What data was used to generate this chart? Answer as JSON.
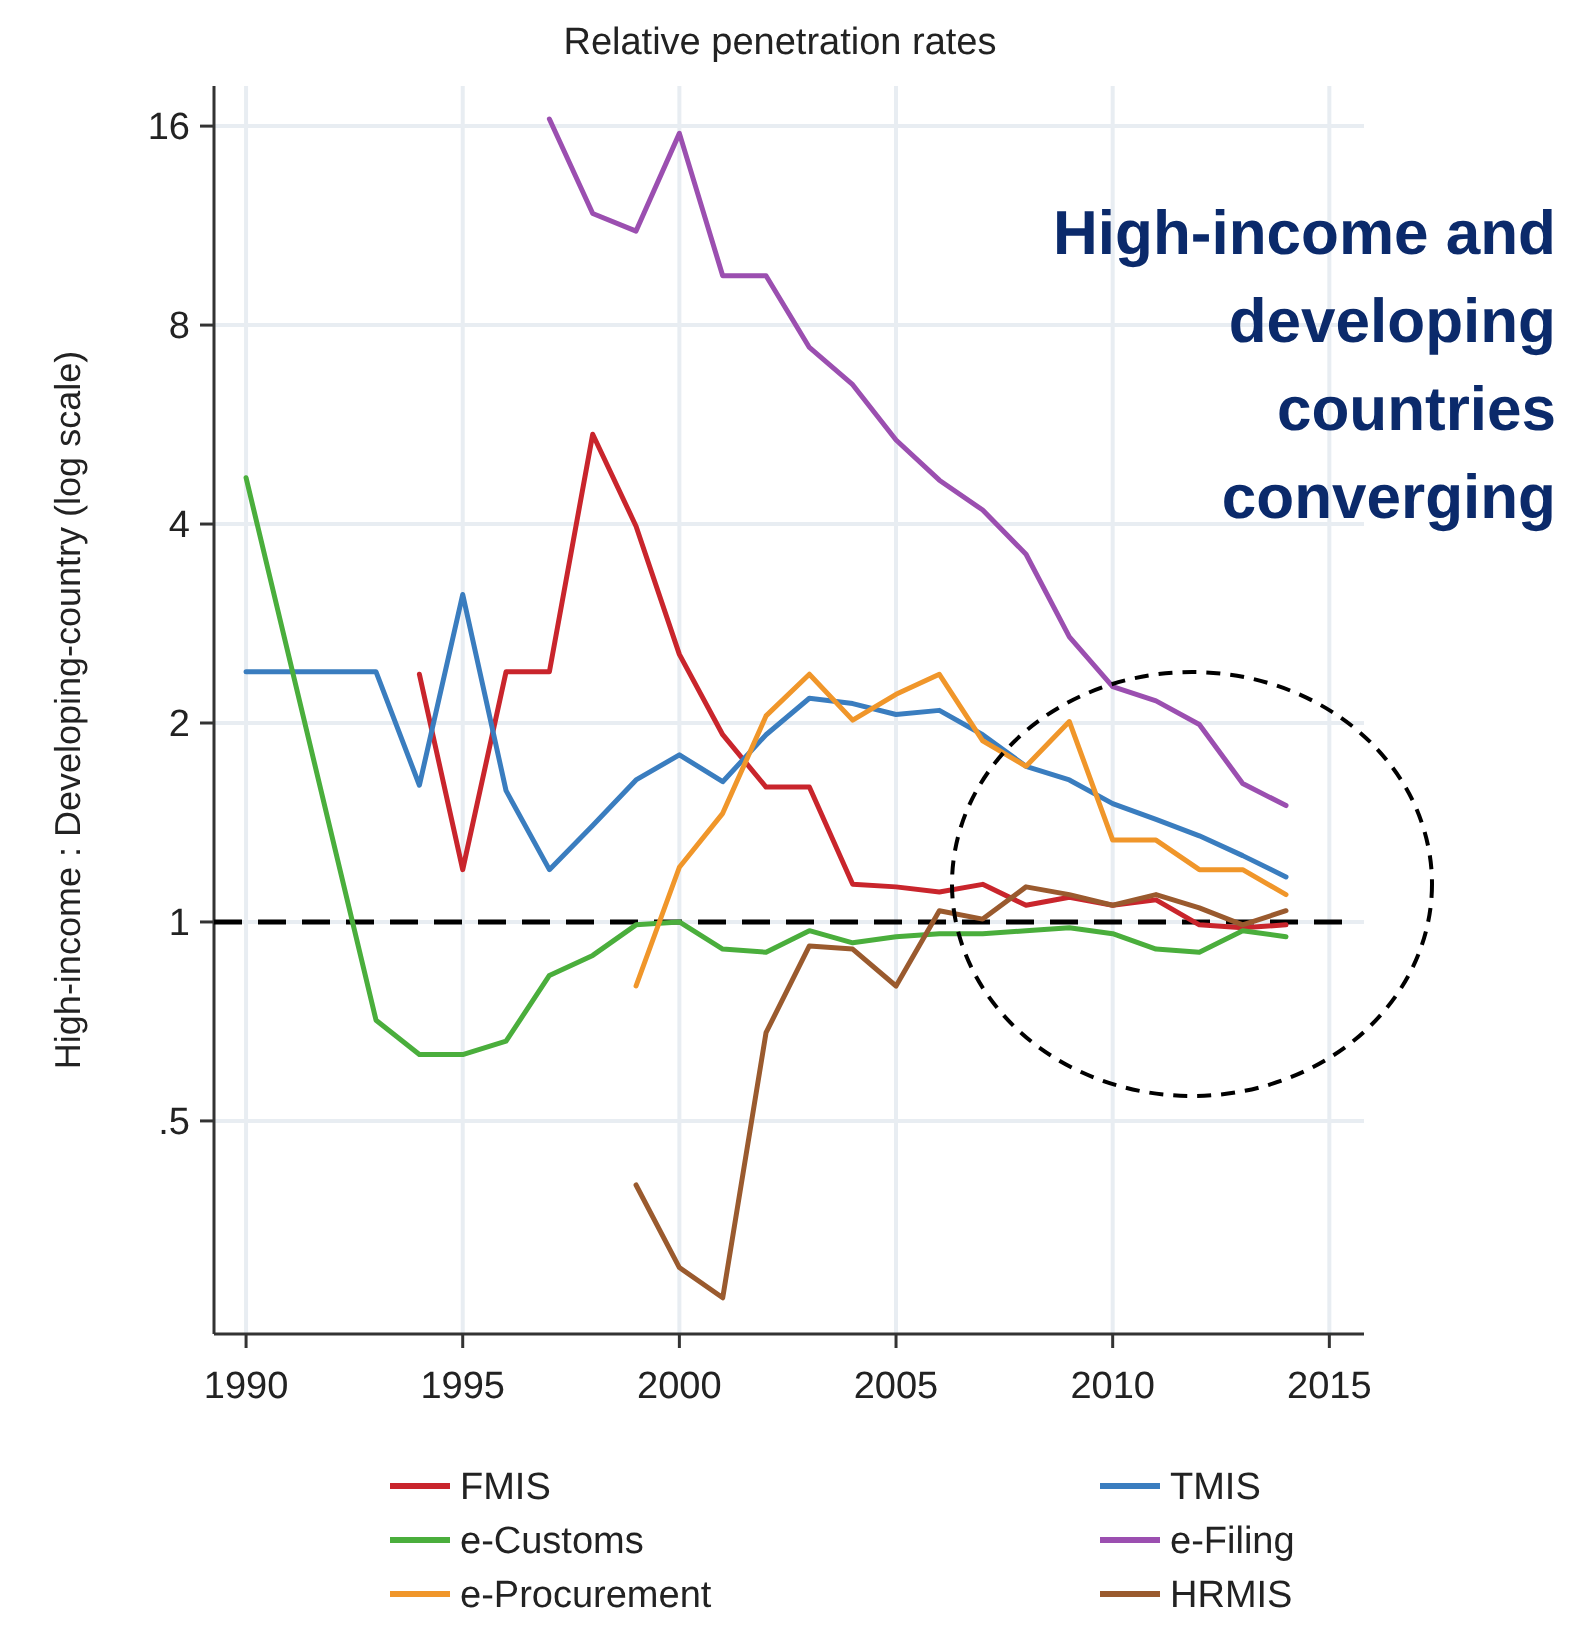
{
  "chart_data": {
    "type": "line",
    "title": "Relative penetration rates",
    "ylabel": "High-income : Developing-country (log scale)",
    "xlim": [
      1989.26,
      2015.8
    ],
    "xticks": [
      1990,
      1995,
      2000,
      2005,
      2010,
      2015
    ],
    "ylim": [
      0.238,
      18.4
    ],
    "yticks": [
      16,
      8,
      4,
      2,
      1,
      {
        "value": 0.5,
        "label": ".5"
      }
    ],
    "log": "y",
    "grid": true,
    "legend": "bottom",
    "marker": "none",
    "line_style": "solid",
    "ref_lines": [
      {
        "axis": "y",
        "value": 1,
        "label": null,
        "color": "#000000",
        "line_style": "dashed"
      }
    ],
    "annotations": [
      "High-income and developing countries converging"
    ],
    "series": [
      {
        "name": "FMIS",
        "color": "#c9252c",
        "x": [
          1994,
          1995,
          1996,
          1997,
          1998,
          1999,
          2000,
          2001,
          2002,
          2003,
          2004,
          2005,
          2006,
          2007,
          2008,
          2009,
          2010,
          2011,
          2012,
          2013,
          2014
        ],
        "values": [
          2.37,
          1.2,
          2.39,
          2.39,
          5.47,
          3.97,
          2.54,
          1.92,
          1.6,
          1.6,
          1.14,
          1.13,
          1.11,
          1.14,
          1.06,
          1.09,
          1.06,
          1.08,
          0.99,
          0.98,
          0.99
        ]
      },
      {
        "name": "TMIS",
        "color": "#3a7dbf",
        "x": [
          1990,
          1993,
          1994,
          1995,
          1996,
          1997,
          1998,
          1999,
          2000,
          2001,
          2002,
          2003,
          2004,
          2005,
          2006,
          2007,
          2008,
          2009,
          2010,
          2011,
          2012,
          2013,
          2014
        ],
        "values": [
          2.39,
          2.39,
          1.61,
          3.13,
          1.58,
          1.2,
          1.4,
          1.64,
          1.79,
          1.63,
          1.92,
          2.18,
          2.14,
          2.06,
          2.09,
          1.92,
          1.72,
          1.64,
          1.51,
          1.43,
          1.35,
          1.26,
          1.17
        ]
      },
      {
        "name": "e-Customs",
        "color": "#4aae3c",
        "x": [
          1990,
          1993,
          1994,
          1995,
          1996,
          1997,
          1998,
          1999,
          2000,
          2001,
          2002,
          2003,
          2004,
          2005,
          2006,
          2007,
          2008,
          2009,
          2010,
          2011,
          2012,
          2013,
          2014
        ],
        "values": [
          4.7,
          0.71,
          0.63,
          0.63,
          0.66,
          0.83,
          0.89,
          0.99,
          1.0,
          0.91,
          0.9,
          0.97,
          0.93,
          0.95,
          0.96,
          0.96,
          0.97,
          0.98,
          0.96,
          0.91,
          0.9,
          0.97,
          0.95
        ]
      },
      {
        "name": "e-Filing",
        "color": "#9b4fb0",
        "x": [
          1997,
          1998,
          1999,
          2000,
          2001,
          2002,
          2003,
          2004,
          2005,
          2006,
          2007,
          2008,
          2009,
          2010,
          2011,
          2012,
          2013,
          2014
        ],
        "values": [
          16.4,
          11.8,
          11.1,
          15.6,
          9.5,
          9.5,
          7.4,
          6.5,
          5.36,
          4.66,
          4.2,
          3.6,
          2.7,
          2.27,
          2.16,
          1.99,
          1.62,
          1.5
        ]
      },
      {
        "name": "e-Procurement",
        "color": "#f0962a",
        "x": [
          1999,
          2000,
          2001,
          2002,
          2003,
          2004,
          2005,
          2006,
          2007,
          2008,
          2009,
          2010,
          2011,
          2012,
          2013,
          2014
        ],
        "values": [
          0.8,
          1.21,
          1.46,
          2.05,
          2.37,
          2.02,
          2.21,
          2.37,
          1.88,
          1.72,
          2.01,
          1.33,
          1.33,
          1.2,
          1.2,
          1.1
        ]
      },
      {
        "name": "HRMIS",
        "color": "#9a5a2e",
        "x": [
          1999,
          2000,
          2001,
          2002,
          2003,
          2004,
          2005,
          2006,
          2007,
          2008,
          2009,
          2010,
          2011,
          2012,
          2013,
          2014
        ],
        "values": [
          0.4,
          0.3,
          0.27,
          0.68,
          0.92,
          0.91,
          0.8,
          1.04,
          1.01,
          1.13,
          1.1,
          1.06,
          1.1,
          1.05,
          0.99,
          1.04
        ]
      }
    ]
  }
}
